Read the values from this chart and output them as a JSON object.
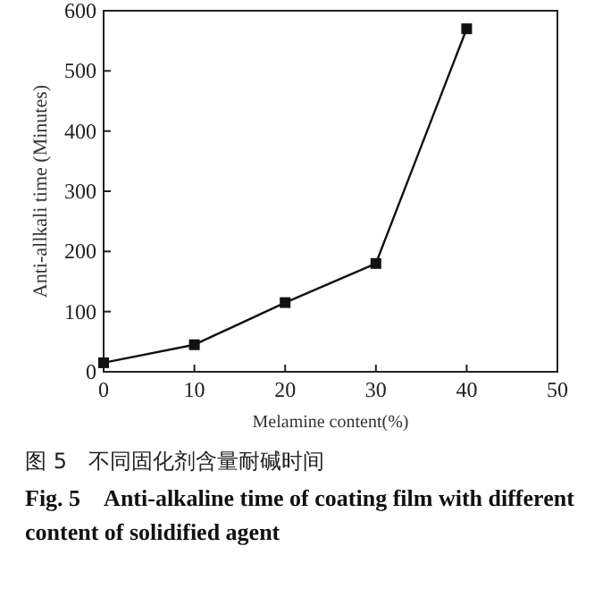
{
  "chart_data": {
    "type": "line",
    "title": "图 5　不同固化剂含量耐碱时间",
    "subtitle": "Fig. 5　Anti-alkaline time of coating film with different content of solidified agent",
    "xlabel": "Melamine content(%)",
    "ylabel": "Anti-allkali time (Minutes)",
    "x": [
      0,
      10,
      20,
      30,
      40
    ],
    "series": [
      {
        "color": "#111111",
        "values": [
          15,
          45,
          115,
          180,
          570
        ]
      }
    ],
    "xlim": [
      0,
      50
    ],
    "xticks": [
      0,
      10,
      20,
      30,
      40,
      50
    ],
    "ylim": [
      0,
      600
    ],
    "yticks": [
      0,
      100,
      200,
      300,
      400,
      500,
      600
    ],
    "marker": "square",
    "line_style": "solid",
    "grid": false
  }
}
